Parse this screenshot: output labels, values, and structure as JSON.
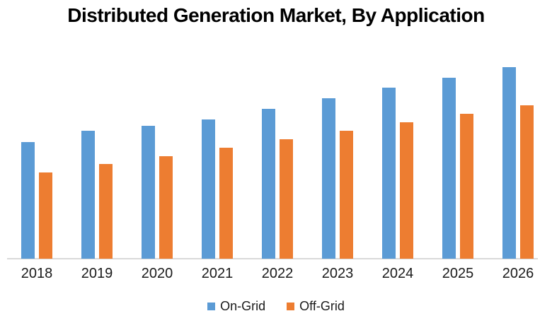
{
  "title": "Distributed Generation Market, By Application",
  "chart_data": {
    "type": "bar",
    "title": "Distributed Generation Market, By Application",
    "categories": [
      "2018",
      "2019",
      "2020",
      "2021",
      "2022",
      "2023",
      "2024",
      "2025",
      "2026"
    ],
    "series": [
      {
        "name": "On-Grid",
        "color": "#5b9bd5",
        "values": [
          165,
          181,
          188,
          197,
          212,
          227,
          242,
          256,
          271
        ]
      },
      {
        "name": "Off-Grid",
        "color": "#ed7d31",
        "values": [
          122,
          134,
          145,
          157,
          169,
          181,
          193,
          205,
          217
        ]
      }
    ],
    "xlabel": "",
    "ylabel": "",
    "units": "relative (chart displays no value axis; values estimated from bar heights)",
    "ylim": [
      0,
      300
    ],
    "grid": false,
    "y_axis_visible": false,
    "legend_position": "bottom"
  },
  "legend": {
    "items": [
      {
        "label": "On-Grid",
        "color": "#5b9bd5"
      },
      {
        "label": "Off-Grid",
        "color": "#ed7d31"
      }
    ]
  },
  "colors": {
    "on_grid": "#5b9bd5",
    "off_grid": "#ed7d31",
    "axis_line": "#d9d9d9",
    "text": "#1a1a1a",
    "background": "#ffffff"
  }
}
